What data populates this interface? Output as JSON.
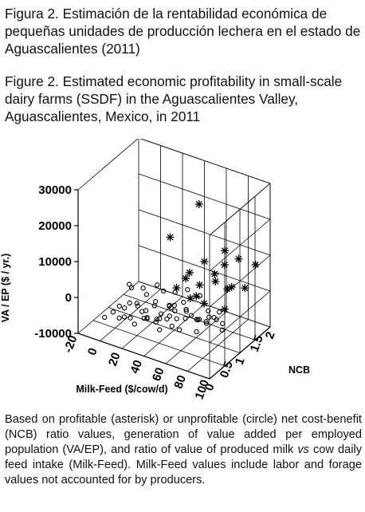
{
  "caption_es": "Figura 2. Estimación de la rentabilidad económica de pequeñas unidades de producción lechera en el estado de Aguascalientes (2011)",
  "caption_en": "Figure 2. Estimated economic profitability in small-scale dairy farms (SSDF) in the Aguascalientes Valley, Aguascalientes, Mexico, in 2011",
  "note_part1": "Based on profitable (asterisk) or unprofitable (circle) net cost-benefit (NCB) ratio values, generation of value added per employed population (VA/EP), and ratio of value of produced milk ",
  "note_vs": "vs",
  "note_part2": " cow daily feed intake (Milk-Feed). Milk-Feed values include labor and forage values not accounted for by producers.",
  "chart_data": {
    "type": "scatter3d",
    "x_label": "Milk-Feed ($/cow/d)",
    "y_label": "NCB",
    "z_label": "VA / EP ($ / yr.)",
    "x_ticks": [
      "-20",
      "0",
      "20",
      "40",
      "60",
      "80",
      "100"
    ],
    "y_ticks": [
      "0",
      "0.5",
      "1",
      "1.5",
      "2"
    ],
    "z_ticks": [
      "-10000",
      "0",
      "10000",
      "20000",
      "30000"
    ],
    "x_range": [
      -20,
      100
    ],
    "y_range": [
      0,
      2
    ],
    "z_range": [
      -10000,
      30000
    ],
    "grid": true,
    "series": [
      {
        "marker": "circle",
        "points": [
          [
            0,
            0.15,
            -4500
          ],
          [
            5,
            0.25,
            -3200
          ],
          [
            8,
            0.35,
            -2000
          ],
          [
            12,
            0.2,
            -3800
          ],
          [
            14,
            0.3,
            -1500
          ],
          [
            16,
            0.4,
            -600
          ],
          [
            18,
            0.15,
            -2500
          ],
          [
            20,
            0.28,
            -3500
          ],
          [
            22,
            0.45,
            -1200
          ],
          [
            24,
            0.35,
            500
          ],
          [
            26,
            0.2,
            -4000
          ],
          [
            28,
            0.5,
            -2200
          ],
          [
            30,
            0.3,
            -800
          ],
          [
            32,
            0.4,
            -3000
          ],
          [
            34,
            0.6,
            200
          ],
          [
            36,
            0.25,
            -1800
          ],
          [
            38,
            0.5,
            -3500
          ],
          [
            40,
            0.35,
            1500
          ],
          [
            42,
            0.45,
            -2600
          ],
          [
            44,
            0.7,
            -500
          ],
          [
            46,
            0.3,
            -4200
          ],
          [
            48,
            0.55,
            800
          ],
          [
            50,
            0.4,
            -1500
          ],
          [
            52,
            0.65,
            -3000
          ],
          [
            54,
            0.5,
            2000
          ],
          [
            56,
            0.35,
            -2500
          ],
          [
            58,
            0.75,
            -1000
          ],
          [
            60,
            0.45,
            -3800
          ],
          [
            62,
            0.6,
            1000
          ],
          [
            64,
            0.5,
            -600
          ],
          [
            66,
            0.8,
            -2800
          ],
          [
            68,
            0.55,
            300
          ],
          [
            70,
            0.7,
            -1800
          ],
          [
            72,
            0.9,
            -3500
          ],
          [
            74,
            0.6,
            -500
          ],
          [
            76,
            0.85,
            -1500
          ],
          [
            78,
            0.75,
            1200
          ],
          [
            80,
            0.95,
            -2500
          ],
          [
            82,
            0.8,
            -600
          ],
          [
            84,
            0.9,
            400
          ],
          [
            10,
            0.6,
            2500
          ],
          [
            20,
            0.7,
            1800
          ],
          [
            30,
            0.8,
            3000
          ],
          [
            45,
            0.85,
            2200
          ],
          [
            55,
            0.9,
            3600
          ],
          [
            65,
            0.95,
            2600
          ],
          [
            25,
            0.55,
            -5000
          ],
          [
            35,
            0.75,
            -4200
          ],
          [
            70,
            0.98,
            -4800
          ],
          [
            85,
            0.97,
            -3200
          ],
          [
            15,
            0.5,
            2800
          ],
          [
            60,
            0.3,
            2600
          ],
          [
            40,
            0.9,
            -3000
          ],
          [
            50,
            0.95,
            -800
          ],
          [
            77,
            0.4,
            -2200
          ],
          [
            88,
            0.85,
            -3800
          ],
          [
            33,
            0.9,
            900
          ],
          [
            58,
            0.2,
            1600
          ],
          [
            47,
            0.15,
            -900
          ],
          [
            19,
            0.85,
            -1200
          ]
        ]
      },
      {
        "marker": "asterisk",
        "points": [
          [
            60,
            1.1,
            26500
          ],
          [
            35,
            1.05,
            15000
          ],
          [
            45,
            1.2,
            3500
          ],
          [
            50,
            1.15,
            6000
          ],
          [
            55,
            1.3,
            2000
          ],
          [
            62,
            1.2,
            10000
          ],
          [
            68,
            1.35,
            4000
          ],
          [
            70,
            1.25,
            7000
          ],
          [
            75,
            1.4,
            9000
          ],
          [
            78,
            1.3,
            14000
          ],
          [
            80,
            1.45,
            3000
          ],
          [
            85,
            1.5,
            11000
          ],
          [
            88,
            1.6,
            2500
          ],
          [
            95,
            1.7,
            9000
          ],
          [
            72,
            1.6,
            500
          ],
          [
            66,
            1.05,
            -200
          ],
          [
            58,
            1.08,
            800
          ],
          [
            52,
            1.1,
            -600
          ],
          [
            82,
            1.15,
            -800
          ],
          [
            40,
            1.08,
            1200
          ]
        ]
      }
    ]
  }
}
